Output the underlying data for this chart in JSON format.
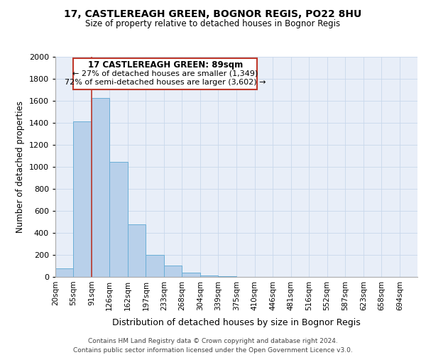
{
  "title1": "17, CASTLEREAGH GREEN, BOGNOR REGIS, PO22 8HU",
  "title2": "Size of property relative to detached houses in Bognor Regis",
  "xlabel": "Distribution of detached houses by size in Bognor Regis",
  "ylabel": "Number of detached properties",
  "annotation_title": "17 CASTLEREAGH GREEN: 89sqm",
  "annotation_line1": "← 27% of detached houses are smaller (1,349)",
  "annotation_line2": "72% of semi-detached houses are larger (3,602) →",
  "footer1": "Contains HM Land Registry data © Crown copyright and database right 2024.",
  "footer2": "Contains public sector information licensed under the Open Government Licence v3.0.",
  "bar_edges": [
    20,
    55,
    91,
    126,
    162,
    197,
    233,
    268,
    304,
    339,
    375,
    410,
    446,
    481,
    516,
    552,
    587,
    623,
    658,
    694,
    729
  ],
  "bar_heights": [
    75,
    1415,
    1625,
    1045,
    480,
    200,
    105,
    40,
    15,
    5,
    2,
    1,
    0,
    0,
    0,
    0,
    0,
    0,
    0,
    0
  ],
  "bar_color": "#b8d0ea",
  "bar_edge_color": "#6aaed6",
  "vline_x": 91,
  "vline_color": "#c0392b",
  "annotation_box_color": "#c0392b",
  "ylim": [
    0,
    2000
  ],
  "yticks": [
    0,
    200,
    400,
    600,
    800,
    1000,
    1200,
    1400,
    1600,
    1800,
    2000
  ],
  "grid_color": "#c8d8ec",
  "background_color": "#e8eef8"
}
